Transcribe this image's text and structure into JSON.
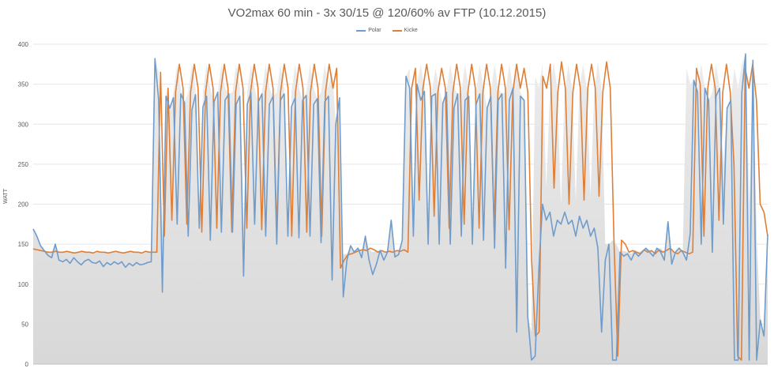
{
  "chart_data": {
    "type": "line",
    "title": "VO2max 60 min - 3x 30/15 @ 120/60% av FTP (10.12.2015)",
    "ylabel": "WATT",
    "xlabel": "",
    "ylim": [
      0,
      400
    ],
    "yticks": [
      0,
      50,
      100,
      150,
      200,
      250,
      300,
      350,
      400
    ],
    "grid": true,
    "legend_position": "top",
    "background_fill": "#dedede",
    "series": [
      {
        "name": "Polar",
        "color": "#6f9ccb",
        "values": [
          169,
          160,
          148,
          142,
          136,
          133,
          150,
          130,
          128,
          131,
          126,
          133,
          128,
          124,
          129,
          131,
          127,
          126,
          129,
          122,
          127,
          124,
          128,
          125,
          128,
          121,
          126,
          123,
          127,
          124,
          125,
          127,
          128,
          382,
          330,
          90,
          335,
          320,
          333,
          175,
          338,
          327,
          160,
          318,
          337,
          170,
          322,
          335,
          155,
          328,
          340,
          165,
          330,
          338,
          165,
          325,
          335,
          110,
          325,
          340,
          175,
          328,
          338,
          160,
          325,
          335,
          150,
          330,
          338,
          160,
          322,
          333,
          158,
          330,
          336,
          160,
          325,
          332,
          152,
          328,
          335,
          105,
          300,
          333,
          84,
          130,
          148,
          140,
          145,
          133,
          160,
          130,
          112,
          125,
          142,
          130,
          140,
          180,
          134,
          137,
          155,
          360,
          345,
          160,
          350,
          330,
          341,
          150,
          335,
          338,
          150,
          326,
          340,
          150,
          320,
          338,
          160,
          330,
          335,
          150,
          325,
          338,
          155,
          320,
          335,
          145,
          330,
          338,
          120,
          330,
          345,
          40,
          335,
          330,
          60,
          5,
          10,
          120,
          200,
          180,
          190,
          160,
          180,
          175,
          190,
          175,
          180,
          160,
          185,
          170,
          180,
          160,
          170,
          145,
          40,
          130,
          150,
          5,
          5,
          140,
          135,
          138,
          130,
          140,
          135,
          140,
          145,
          140,
          135,
          145,
          140,
          130,
          178,
          125,
          140,
          145,
          140,
          130,
          163,
          355,
          340,
          150,
          345,
          330,
          140,
          335,
          345,
          175,
          320,
          330,
          5,
          5,
          340,
          388,
          5,
          380,
          5,
          55,
          35,
          162
        ]
      },
      {
        "name": "Kicke",
        "color": "#df7e36",
        "values": [
          144,
          143,
          142,
          141,
          140,
          140,
          141,
          140,
          140,
          141,
          140,
          139,
          140,
          141,
          140,
          140,
          139,
          141,
          140,
          140,
          139,
          140,
          141,
          140,
          139,
          140,
          141,
          140,
          140,
          139,
          141,
          140,
          140,
          140,
          365,
          160,
          345,
          180,
          340,
          375,
          345,
          175,
          340,
          375,
          345,
          165,
          340,
          375,
          345,
          170,
          340,
          375,
          345,
          165,
          340,
          375,
          345,
          170,
          340,
          375,
          345,
          168,
          340,
          375,
          345,
          165,
          340,
          375,
          345,
          160,
          340,
          375,
          345,
          165,
          340,
          375,
          345,
          160,
          340,
          375,
          345,
          370,
          120,
          130,
          137,
          138,
          140,
          142,
          143,
          142,
          145,
          143,
          140,
          142,
          140,
          141,
          140,
          142,
          141,
          143,
          140,
          345,
          370,
          205,
          345,
          375,
          345,
          185,
          340,
          370,
          345,
          170,
          340,
          375,
          345,
          175,
          340,
          375,
          345,
          170,
          340,
          375,
          345,
          170,
          340,
          375,
          345,
          168,
          340,
          375,
          345,
          370,
          340,
          130,
          35,
          40,
          360,
          345,
          375,
          220,
          340,
          378,
          345,
          200,
          340,
          375,
          345,
          205,
          345,
          375,
          345,
          210,
          340,
          378,
          345,
          150,
          10,
          155,
          150,
          140,
          142,
          140,
          138,
          143,
          140,
          142,
          138,
          143,
          140,
          142,
          145,
          140,
          138,
          142,
          140,
          138,
          140,
          370,
          350,
          160,
          345,
          375,
          345,
          180,
          340,
          375,
          340,
          250,
          10,
          5,
          370,
          345,
          375,
          330,
          200,
          190,
          160
        ]
      }
    ]
  }
}
